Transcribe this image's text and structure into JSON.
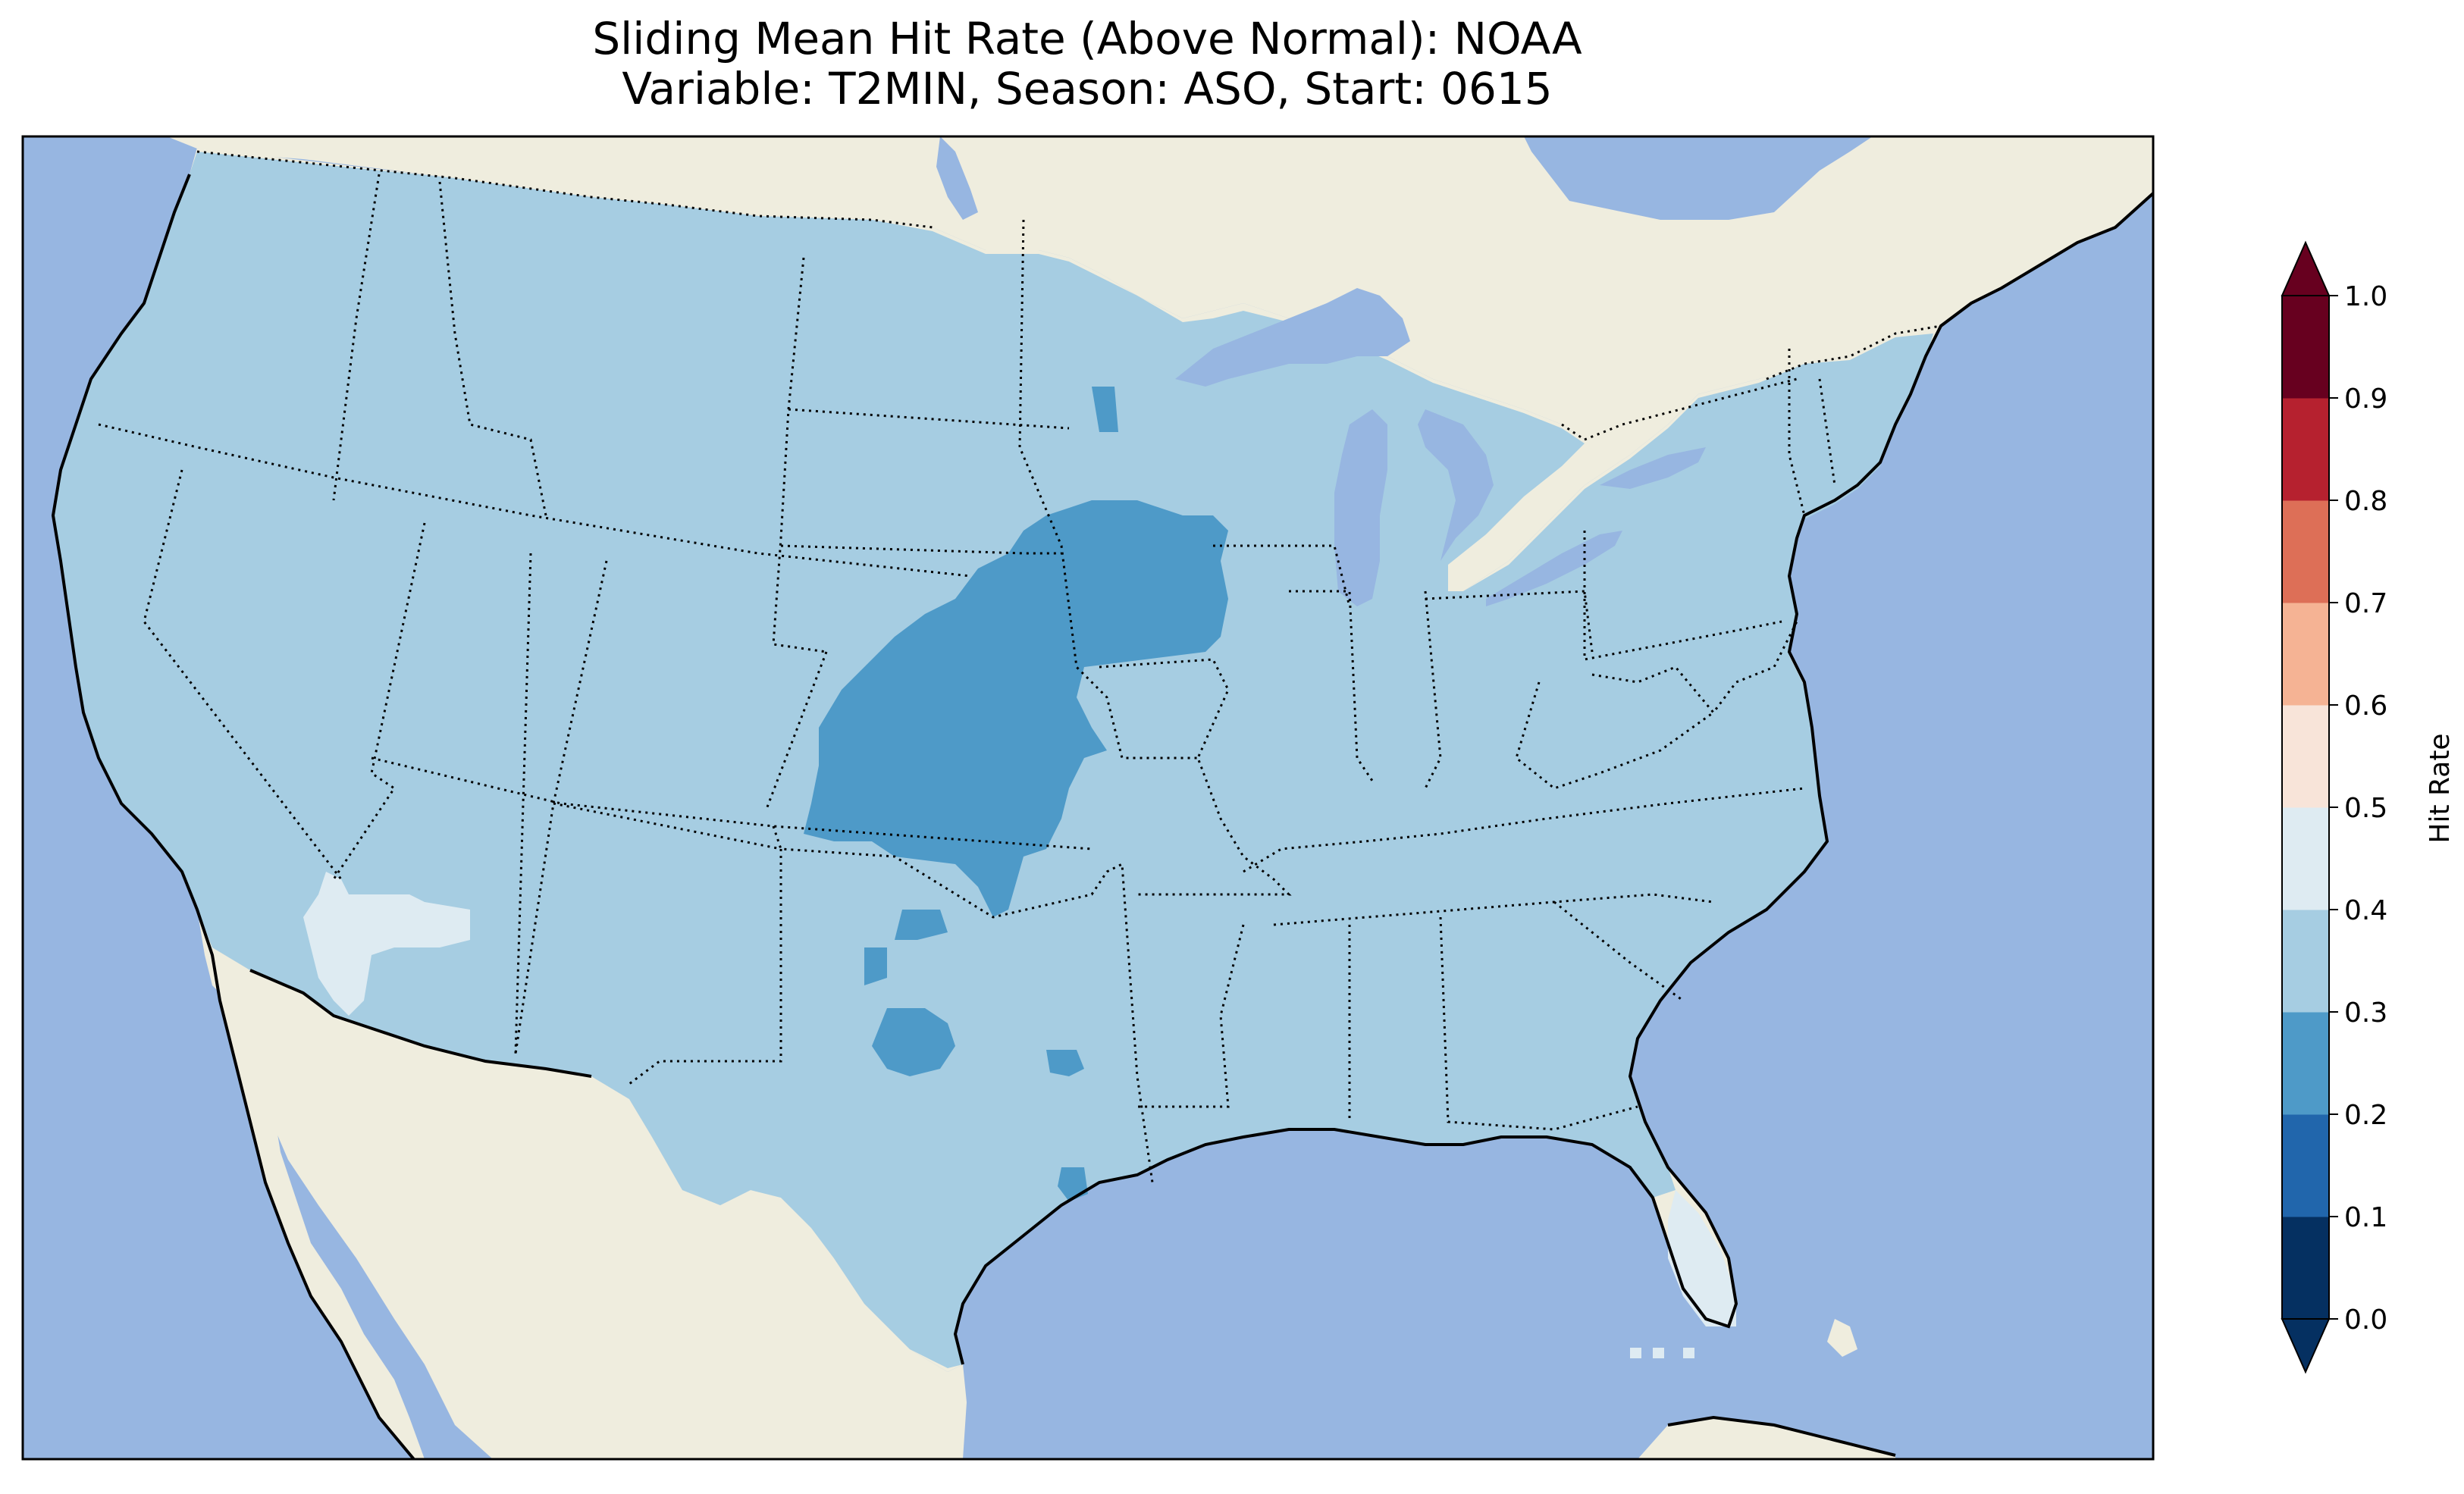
{
  "title": {
    "line1": "Sliding Mean Hit Rate (Above Normal): NOAA",
    "line2": "Variable: T2MIN, Season: ASO, Start: 0615"
  },
  "colors": {
    "ocean": "#97b6e1",
    "land": "#efedde",
    "lakes": "#97b6e1",
    "state_lines": "#000000",
    "coastline": "#000000"
  },
  "map": {
    "projection": "lat-lon",
    "extent_lon": [
      -125,
      -65
    ],
    "extent_lat": [
      24,
      50
    ],
    "dominant_class": "0.3-0.4",
    "regions": [
      {
        "name": "central-plains-corn-belt",
        "class": "0.2-0.3"
      },
      {
        "name": "north-texas-patch",
        "class": "0.2-0.3"
      },
      {
        "name": "west-texas-patch",
        "class": "0.2-0.3"
      },
      {
        "name": "southeast-texas-patch",
        "class": "0.2-0.3"
      },
      {
        "name": "southern-arizona-california",
        "class": "0.4-0.5"
      },
      {
        "name": "south-florida",
        "class": "0.4-0.5"
      }
    ]
  },
  "colorbar": {
    "label": "Hit Rate",
    "ticks": [
      "0.0",
      "0.1",
      "0.2",
      "0.3",
      "0.4",
      "0.5",
      "0.6",
      "0.7",
      "0.8",
      "0.9",
      "1.0"
    ],
    "bins": [
      {
        "range": "0.0-0.1",
        "color": "#053061"
      },
      {
        "range": "0.1-0.2",
        "color": "#2166ac"
      },
      {
        "range": "0.2-0.3",
        "color": "#4e9ac8"
      },
      {
        "range": "0.3-0.4",
        "color": "#a6cde2"
      },
      {
        "range": "0.4-0.5",
        "color": "#deebf2"
      },
      {
        "range": "0.5-0.6",
        "color": "#f8e4d9"
      },
      {
        "range": "0.6-0.7",
        "color": "#f5b394"
      },
      {
        "range": "0.7-0.8",
        "color": "#dd6f57"
      },
      {
        "range": "0.8-0.9",
        "color": "#b6212f"
      },
      {
        "range": "0.9-1.0",
        "color": "#67001f"
      }
    ],
    "extend_low_color": "#053061",
    "extend_high_color": "#67001f"
  }
}
